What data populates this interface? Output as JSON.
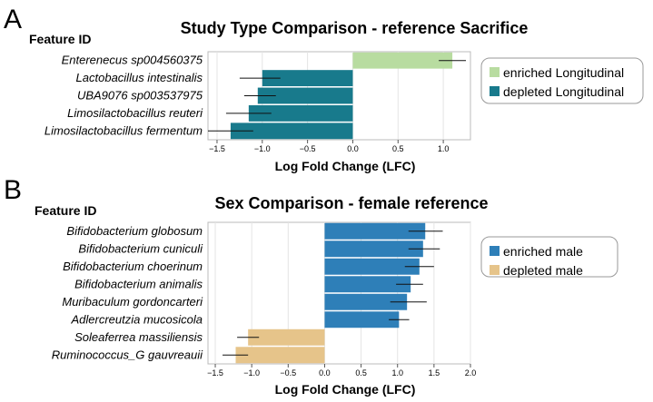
{
  "chart_data": [
    {
      "panel": "A",
      "type": "bar",
      "orientation": "horizontal",
      "title": "Study Type Comparison - reference Sacrifice",
      "ylabel": "Feature ID",
      "xlabel": "Log Fold Change (LFC)",
      "xlim": [
        -1.6,
        1.3
      ],
      "xticks": [
        -1.5,
        -1.0,
        -0.5,
        0.0,
        0.5,
        1.0
      ],
      "xtick_labels": [
        "−1.5",
        "−1.0",
        "−0.5",
        "0.0",
        "0.5",
        "1.0"
      ],
      "grid": true,
      "legend_position": "right",
      "categories": [
        "Enterenecus sp004560375",
        "Lactobacillus intestinalis",
        "UBA9076 sp003537975",
        "Limosilactobacillus reuteri",
        "Limosilactobacillus fermentum"
      ],
      "values": [
        1.1,
        -1.0,
        -1.05,
        -1.15,
        -1.35
      ],
      "error_low": [
        0.95,
        -1.25,
        -1.2,
        -1.4,
        -1.6
      ],
      "error_high": [
        1.25,
        -0.8,
        -0.85,
        -0.9,
        -1.1
      ],
      "groups": [
        "enriched Longitudinal",
        "depleted Longitudinal",
        "depleted Longitudinal",
        "depleted Longitudinal",
        "depleted Longitudinal"
      ],
      "legend": [
        {
          "label": "enriched Longitudinal",
          "color": "#b8dca0"
        },
        {
          "label": "depleted Longitudinal",
          "color": "#187a8c"
        }
      ]
    },
    {
      "panel": "B",
      "type": "bar",
      "orientation": "horizontal",
      "title": "Sex Comparison - female reference",
      "ylabel": "Feature ID",
      "xlabel": "Log Fold Change (LFC)",
      "xlim": [
        -1.6,
        2.0
      ],
      "xticks": [
        -1.5,
        -1.0,
        -0.5,
        0.0,
        0.5,
        1.0,
        1.5,
        2.0
      ],
      "xtick_labels": [
        "−1.5",
        "−1.0",
        "−0.5",
        "0.0",
        "0.5",
        "1.0",
        "1.5",
        "2.0"
      ],
      "grid": true,
      "legend_position": "right",
      "categories": [
        "Bifidobacterium globosum",
        "Bifidobacterium cuniculi",
        "Bifidobacterium choerinum",
        "Bifidobacterium animalis",
        "Muribaculum gordoncarteri",
        "Adlercreutzia mucosicola",
        "Soleaferrea massiliensis",
        "Ruminococcus_G gauvreauii"
      ],
      "values": [
        1.38,
        1.35,
        1.3,
        1.18,
        1.13,
        1.02,
        -1.05,
        -1.22
      ],
      "error_low": [
        1.15,
        1.15,
        1.1,
        0.98,
        0.9,
        0.88,
        -1.2,
        -1.4
      ],
      "error_high": [
        1.62,
        1.58,
        1.5,
        1.35,
        1.4,
        1.16,
        -0.9,
        -1.05
      ],
      "groups": [
        "enriched male",
        "enriched male",
        "enriched male",
        "enriched male",
        "enriched male",
        "enriched male",
        "depleted male",
        "depleted male"
      ],
      "legend": [
        {
          "label": "enriched male",
          "color": "#2e7fb8"
        },
        {
          "label": "depleted male",
          "color": "#e6c48a"
        }
      ]
    }
  ],
  "labels": {
    "panel_a": "A",
    "panel_b": "B"
  }
}
